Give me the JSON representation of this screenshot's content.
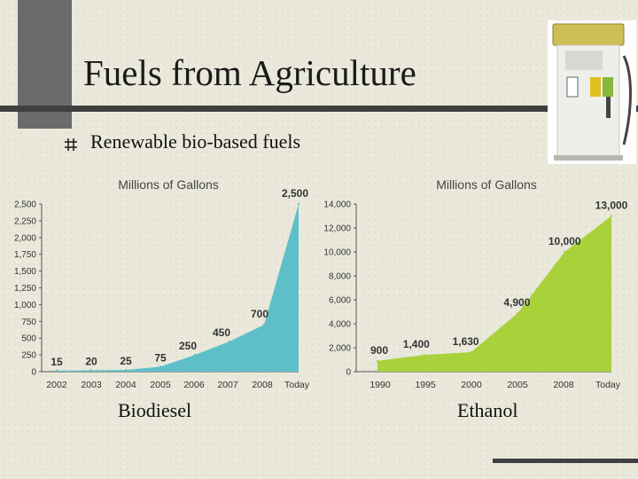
{
  "slide": {
    "title": "Fuels from Agriculture",
    "bullet": "Renewable bio-based fuels",
    "caption_left": "Biodiesel",
    "caption_right": "Ethanol"
  },
  "colors": {
    "biodiesel_fill": "#5fbfc9",
    "ethanol_fill": "#a9d13a",
    "accent_dark": "#3f3f3f"
  },
  "chart_data": [
    {
      "type": "area",
      "title": "Millions of Gallons",
      "caption": "Biodiesel",
      "categories": [
        "2002",
        "2003",
        "2004",
        "2005",
        "2006",
        "2007",
        "2008",
        "Today"
      ],
      "values": [
        15,
        20,
        25,
        75,
        250,
        450,
        700,
        2500
      ],
      "value_labels": [
        "15",
        "20",
        "25",
        "75",
        "250",
        "450",
        "700",
        "2,500"
      ],
      "yticks": [
        0,
        250,
        500,
        750,
        1000,
        1250,
        1500,
        1750,
        2000,
        2250,
        2500
      ],
      "ytick_labels": [
        "0",
        "250",
        "500",
        "750",
        "1,000",
        "1,250",
        "1,500",
        "1,750",
        "2,000",
        "2,250",
        "2,500"
      ],
      "ylim": [
        0,
        2500
      ],
      "color": "#5fbfc9",
      "grid": false
    },
    {
      "type": "area",
      "title": "Millions of Gallons",
      "caption": "Ethanol",
      "categories": [
        "1990",
        "1995",
        "2000",
        "2005",
        "2008",
        "Today"
      ],
      "values": [
        900,
        1400,
        1630,
        4900,
        10000,
        13000
      ],
      "value_labels": [
        "900",
        "1,400",
        "1,630",
        "4,900",
        "10,000",
        "13,000"
      ],
      "yticks": [
        0,
        2000,
        4000,
        6000,
        8000,
        10000,
        12000,
        14000
      ],
      "ytick_labels": [
        "0",
        "2,000",
        "4,000",
        "6,000",
        "8,000",
        "10,000",
        "12,000",
        "14,000"
      ],
      "ylim": [
        0,
        14000
      ],
      "color": "#a9d13a",
      "grid": false
    }
  ]
}
